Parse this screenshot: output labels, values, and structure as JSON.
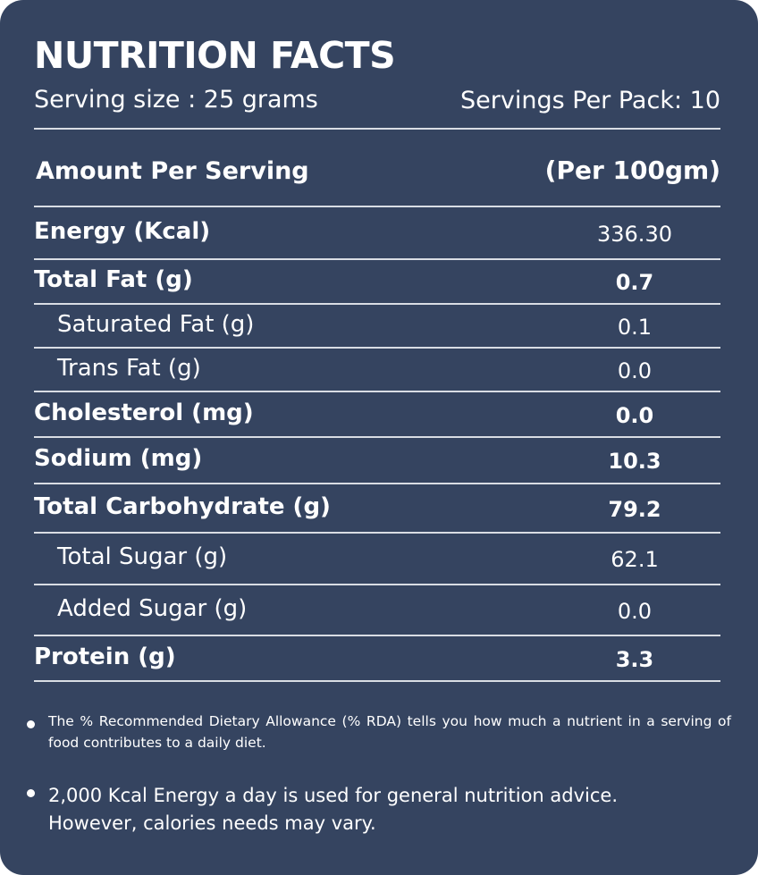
{
  "header": {
    "title": "NUTRITION FACTS",
    "serving_size": "Serving size : 25 grams",
    "servings_per_pack": "Servings Per Pack: 10"
  },
  "table": {
    "heading": "Amount Per Serving",
    "per": "(Per 100gm)",
    "rows": [
      {
        "name": "Energy (Kcal)",
        "value": "336.30",
        "bold_name": true,
        "bold_value": false,
        "indent": false
      },
      {
        "name": "Total Fat (g)",
        "value": "0.7",
        "bold_name": true,
        "bold_value": true,
        "indent": false
      },
      {
        "name": "Saturated Fat (g)",
        "value": "0.1",
        "bold_name": false,
        "bold_value": false,
        "indent": true
      },
      {
        "name": "Trans Fat (g)",
        "value": "0.0",
        "bold_name": false,
        "bold_value": false,
        "indent": true
      },
      {
        "name": "Cholesterol (mg)",
        "value": "0.0",
        "bold_name": true,
        "bold_value": true,
        "indent": false
      },
      {
        "name": "Sodium  (mg)",
        "value": "10.3",
        "bold_name": true,
        "bold_value": true,
        "indent": false
      },
      {
        "name": "Total Carbohydrate (g)",
        "value": "79.2",
        "bold_name": true,
        "bold_value": true,
        "indent": false
      },
      {
        "name": "Total Sugar (g)",
        "value": "62.1",
        "bold_name": false,
        "bold_value": false,
        "indent": true
      },
      {
        "name": "Added Sugar (g)",
        "value": "0.0",
        "bold_name": false,
        "bold_value": false,
        "indent": true
      },
      {
        "name": "Protein (g)",
        "value": "3.3",
        "bold_name": true,
        "bold_value": true,
        "indent": false
      }
    ]
  },
  "notes": [
    "The % Recommended Dietary Allowance (% RDA) tells you how much a nutrient in a serving of food contributes to a daily diet.",
    "2,000 Kcal Energy a day is used for general nutrition advice. However, calories needs may vary."
  ]
}
